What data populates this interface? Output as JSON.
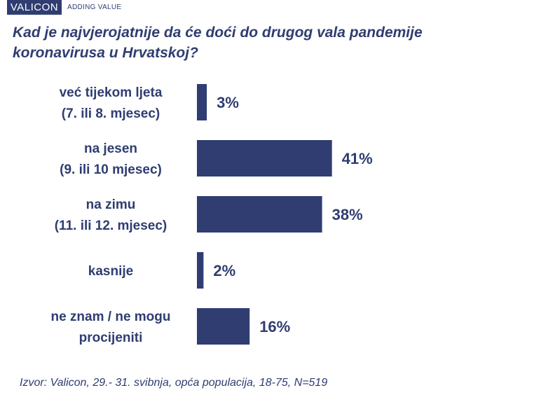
{
  "brand": {
    "logo_text": "VALICON",
    "tagline": "ADDING VALUE",
    "color": "#2f3d71"
  },
  "question": {
    "line1": "Kad je najvjerojatnije  da će doći do drugog vala pandemije",
    "line2": "koronavirusa u Hrvatskoj?"
  },
  "chart_data": {
    "type": "bar",
    "orientation": "horizontal",
    "categories": [
      [
        "već tijekom ljeta",
        "(7. ili 8. mjesec)"
      ],
      [
        "na jesen",
        "(9. ili 10 mjesec)"
      ],
      [
        "na zimu",
        "(11. ili 12. mjesec)"
      ],
      [
        "kasnije"
      ],
      [
        "ne znam / ne mogu",
        "procijeniti"
      ]
    ],
    "values": [
      3,
      41,
      38,
      2,
      16
    ],
    "value_labels": [
      "3%",
      "41%",
      "38%",
      "2%",
      "16%"
    ],
    "unit": "%",
    "bar_color": "#2f3d71",
    "grid": false,
    "legend": "none"
  },
  "source": "Izvor: Valicon, 29.- 31. svibnja, opća populacija, 18-75, N=519"
}
